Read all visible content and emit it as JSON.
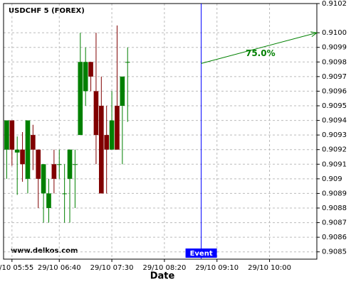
{
  "chart_data": {
    "type": "candlestick",
    "title": "USDCHF 5 (FOREX)",
    "x_label": "Date",
    "watermark": "www.delkos.com",
    "x": [
      "29/10 05:50",
      "29/10 05:55",
      "29/10 06:00",
      "29/10 06:05",
      "29/10 06:10",
      "29/10 06:15",
      "29/10 06:20",
      "29/10 06:25",
      "29/10 06:30",
      "29/10 06:35",
      "29/10 06:40",
      "29/10 06:45",
      "29/10 06:50",
      "29/10 06:55",
      "29/10 07:00",
      "29/10 07:05",
      "29/10 07:10",
      "29/10 07:15",
      "29/10 07:20",
      "29/10 07:25",
      "29/10 07:30",
      "29/10 07:35",
      "29/10 07:40",
      "29/10 07:45"
    ],
    "open": [
      0.9092,
      0.9094,
      0.90918,
      0.9092,
      0.909,
      0.9093,
      0.9092,
      0.9089,
      0.9088,
      0.9091,
      0.9091,
      0.9089,
      0.909,
      0.9091,
      0.9093,
      0.9096,
      0.9098,
      0.9096,
      0.9095,
      0.9093,
      0.9092,
      0.9095,
      0.9095,
      0.9098
    ],
    "high": [
      0.9094,
      0.9094,
      0.90929,
      0.90932,
      0.9094,
      0.90937,
      0.9092,
      0.9091,
      0.909,
      0.9092,
      0.9092,
      0.9091,
      0.9092,
      0.9092,
      0.91,
      0.9099,
      0.9098,
      0.91,
      0.9097,
      0.9095,
      0.9096,
      0.91005,
      0.9097,
      0.9099
    ],
    "low": [
      0.909,
      0.90909,
      0.90889,
      0.90898,
      0.9089,
      0.90906,
      0.9088,
      0.9087,
      0.9087,
      0.9089,
      0.909,
      0.9087,
      0.9087,
      0.9088,
      0.9093,
      0.9095,
      0.9096,
      0.9091,
      0.9089,
      0.9089,
      0.9092,
      0.9092,
      0.9091,
      0.90939
    ],
    "close": [
      0.9094,
      0.9092,
      0.9092,
      0.9091,
      0.9094,
      0.9092,
      0.909,
      0.9091,
      0.9089,
      0.909,
      0.9091,
      0.9089,
      0.9092,
      0.9091,
      0.9098,
      0.9098,
      0.9097,
      0.9093,
      0.9089,
      0.9092,
      0.9094,
      0.9092,
      0.9097,
      0.9098
    ],
    "up_color": "#008000",
    "down_color": "#800000",
    "xlim": [
      "29/10 05:47",
      "29/10 10:45"
    ],
    "xticks": [
      "29/10 05:55",
      "29/10 06:40",
      "29/10 07:30",
      "29/10 08:20",
      "29/10 09:10",
      "29/10 10:00"
    ],
    "ylim": [
      0.90845,
      0.9102
    ],
    "yticks": [
      0.9085,
      0.9086,
      0.9087,
      0.9088,
      0.9089,
      0.909,
      0.9091,
      0.9092,
      0.9093,
      0.9094,
      0.9095,
      0.9096,
      0.9097,
      0.9098,
      0.9099,
      {
        "value": 0.91,
        "label": "0.9100"
      },
      0.9102
    ],
    "grid": true,
    "event": {
      "label": "Event",
      "x": "29/10 08:55",
      "color": "#0000ff"
    },
    "forecast": {
      "label": "75.0%",
      "x": [
        "29/10 08:55",
        "29/10 10:45"
      ],
      "y": [
        0.90979,
        0.91
      ],
      "color": "#008000"
    }
  }
}
